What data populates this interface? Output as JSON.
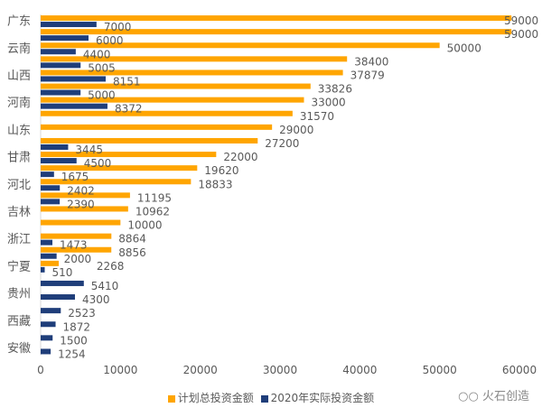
{
  "chart_data": {
    "type": "bar",
    "orientation": "horizontal",
    "categories": [
      "广东",
      "",
      "云南",
      "",
      "山西",
      "",
      "河南",
      "",
      "山东",
      "",
      "甘肃",
      "",
      "河北",
      "",
      "吉林",
      "",
      "浙江",
      "",
      "宁夏",
      "",
      "贵州",
      "",
      "西藏",
      "",
      "安徽"
    ],
    "series": [
      {
        "name": "计划总投资金额",
        "color": "#FFA500",
        "values": [
          59000,
          59000,
          50000,
          38400,
          37879,
          33826,
          33000,
          31570,
          29000,
          27200,
          22000,
          19620,
          18833,
          11195,
          10962,
          10000,
          8864,
          8856,
          2268,
          null,
          null,
          null,
          null,
          null,
          null
        ]
      },
      {
        "name": "2020年实际投资金额",
        "color": "#1F3E7A",
        "values": [
          7000,
          6000,
          4400,
          5005,
          8151,
          5000,
          8372,
          null,
          null,
          3445,
          4500,
          1675,
          2402,
          2390,
          null,
          null,
          1473,
          2000,
          510,
          5410,
          4300,
          2523,
          1872,
          1500,
          1254
        ]
      }
    ],
    "xlim": [
      0,
      60000
    ],
    "xticks": [
      "0",
      "10000",
      "20000",
      "30000",
      "40000",
      "50000",
      "60000"
    ],
    "grid": false,
    "legend": "bottom"
  },
  "watermark": "火石创造"
}
